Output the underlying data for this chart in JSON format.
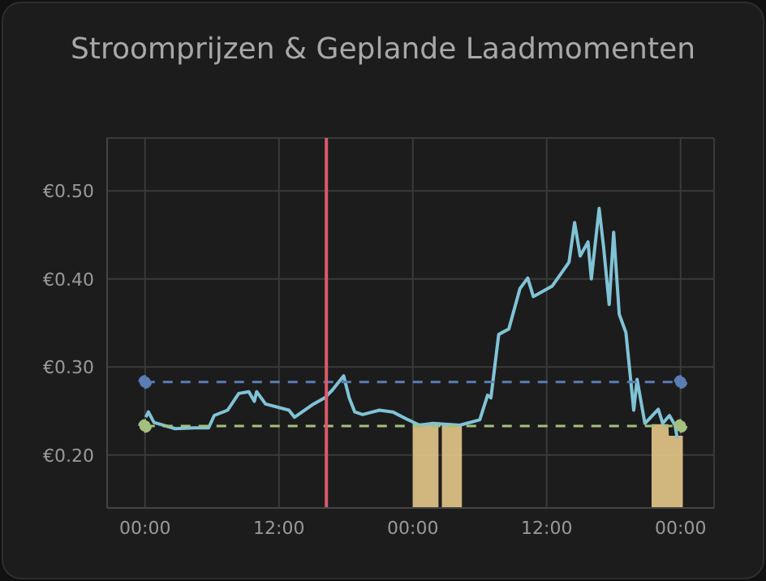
{
  "chart_data": {
    "type": "line",
    "title": "Stroomprijzen & Geplande Laadmomenten",
    "xlim": [
      "--01-31T20:36",
      "--02-03T03:00"
    ],
    "xticks": [
      {
        "value": "--02-01T00:00",
        "label": "00:00"
      },
      {
        "value": "--02-01T12:00",
        "label": "12:00"
      },
      {
        "value": "--02-02T00:00",
        "label": "00:00"
      },
      {
        "value": "--02-02T12:00",
        "label": "12:00"
      },
      {
        "value": "--02-03T00:00",
        "label": "00:00"
      }
    ],
    "ylim": [
      0.14,
      0.56
    ],
    "yticks": [
      {
        "value": 0.2,
        "label": "€0.20"
      },
      {
        "value": 0.3,
        "label": "€0.30"
      },
      {
        "value": 0.4,
        "label": "€0.40"
      },
      {
        "value": 0.5,
        "label": "€0.50"
      }
    ],
    "grid": true,
    "legend": false,
    "ref_lines": [
      {
        "axis": "x",
        "value": "--02-01T16:15",
        "color": "#d9596b"
      }
    ],
    "series": [
      {
        "type": "area",
        "color": "#e6c88a",
        "x": [
          "--02-02T00:00",
          "--02-02T02:18",
          "--02-02T02:27",
          "--02-02T02:36",
          "--02-02T04:24",
          "--02-02T12:00",
          "--02-02T21:24",
          "--02-02T22:54",
          "--02-02T22:57",
          "--02-03T00:12"
        ],
        "values": [
          0.236,
          0.236,
          null,
          0.235,
          0.235,
          null,
          0.235,
          0.235,
          0.222,
          0.222
        ]
      },
      {
        "color": "#80c3d6",
        "marker": "none",
        "line_style": "solid",
        "x": [
          "--02-01T00:04",
          "--02-01T00:18",
          "--02-01T00:48",
          "--02-01T02:42",
          "--02-01T04:24",
          "--02-01T05:42",
          "--02-01T06:12",
          "--02-01T07:24",
          "--02-01T08:24",
          "--02-01T09:18",
          "--02-01T09:48",
          "--02-01T10:00",
          "--02-01T10:48",
          "--02-01T12:54",
          "--02-01T13:24",
          "--02-01T15:06",
          "--02-01T16:06",
          "--02-01T16:48",
          "--02-01T17:48",
          "--02-01T18:18",
          "--02-01T18:48",
          "--02-01T19:30",
          "--02-01T21:00",
          "--02-01T22:12",
          "--02-01T23:36",
          "--02-02T00:36",
          "--02-02T01:48",
          "--02-02T04:12",
          "--02-02T06:00",
          "--02-02T06:42",
          "--02-02T07:00",
          "--02-02T07:42",
          "--02-02T08:36",
          "--02-02T09:36",
          "--02-02T10:18",
          "--02-02T10:48",
          "--02-02T12:30",
          "--02-02T14:00",
          "--02-02T14:30",
          "--02-02T15:00",
          "--02-02T15:42",
          "--02-02T16:00",
          "--02-02T16:42",
          "--02-02T17:06",
          "--02-02T17:36",
          "--02-02T18:00",
          "--02-02T18:30",
          "--02-02T19:06",
          "--02-02T19:48",
          "--02-02T20:06",
          "--02-02T20:48",
          "--02-02T22:00",
          "--02-02T22:24",
          "--02-02T23:00",
          "--02-02T23:30",
          "--02-02T23:42"
        ],
        "values": [
          0.243,
          0.249,
          0.237,
          0.23,
          0.231,
          0.231,
          0.245,
          0.251,
          0.27,
          0.272,
          0.261,
          0.272,
          0.258,
          0.251,
          0.243,
          0.258,
          0.265,
          0.274,
          0.29,
          0.265,
          0.249,
          0.246,
          0.251,
          0.249,
          0.24,
          0.234,
          0.236,
          0.234,
          0.24,
          0.268,
          0.265,
          0.337,
          0.343,
          0.389,
          0.401,
          0.38,
          0.392,
          0.419,
          0.464,
          0.426,
          0.442,
          0.4,
          0.48,
          0.436,
          0.371,
          0.453,
          0.36,
          0.339,
          0.251,
          0.286,
          0.236,
          0.252,
          0.236,
          0.245,
          0.234,
          0.219
        ]
      },
      {
        "color": "#5a7db3",
        "marker": "circle",
        "line_style": "dashed",
        "x": [
          "--02-01T00:00",
          "--02-03T00:00"
        ],
        "values": [
          0.283,
          0.283
        ]
      },
      {
        "color": "#a3c07e",
        "marker": "circle",
        "line_style": "dashed",
        "x": [
          "--02-01T00:00",
          "--02-03T00:00"
        ],
        "values": [
          0.233,
          0.233
        ]
      }
    ]
  }
}
